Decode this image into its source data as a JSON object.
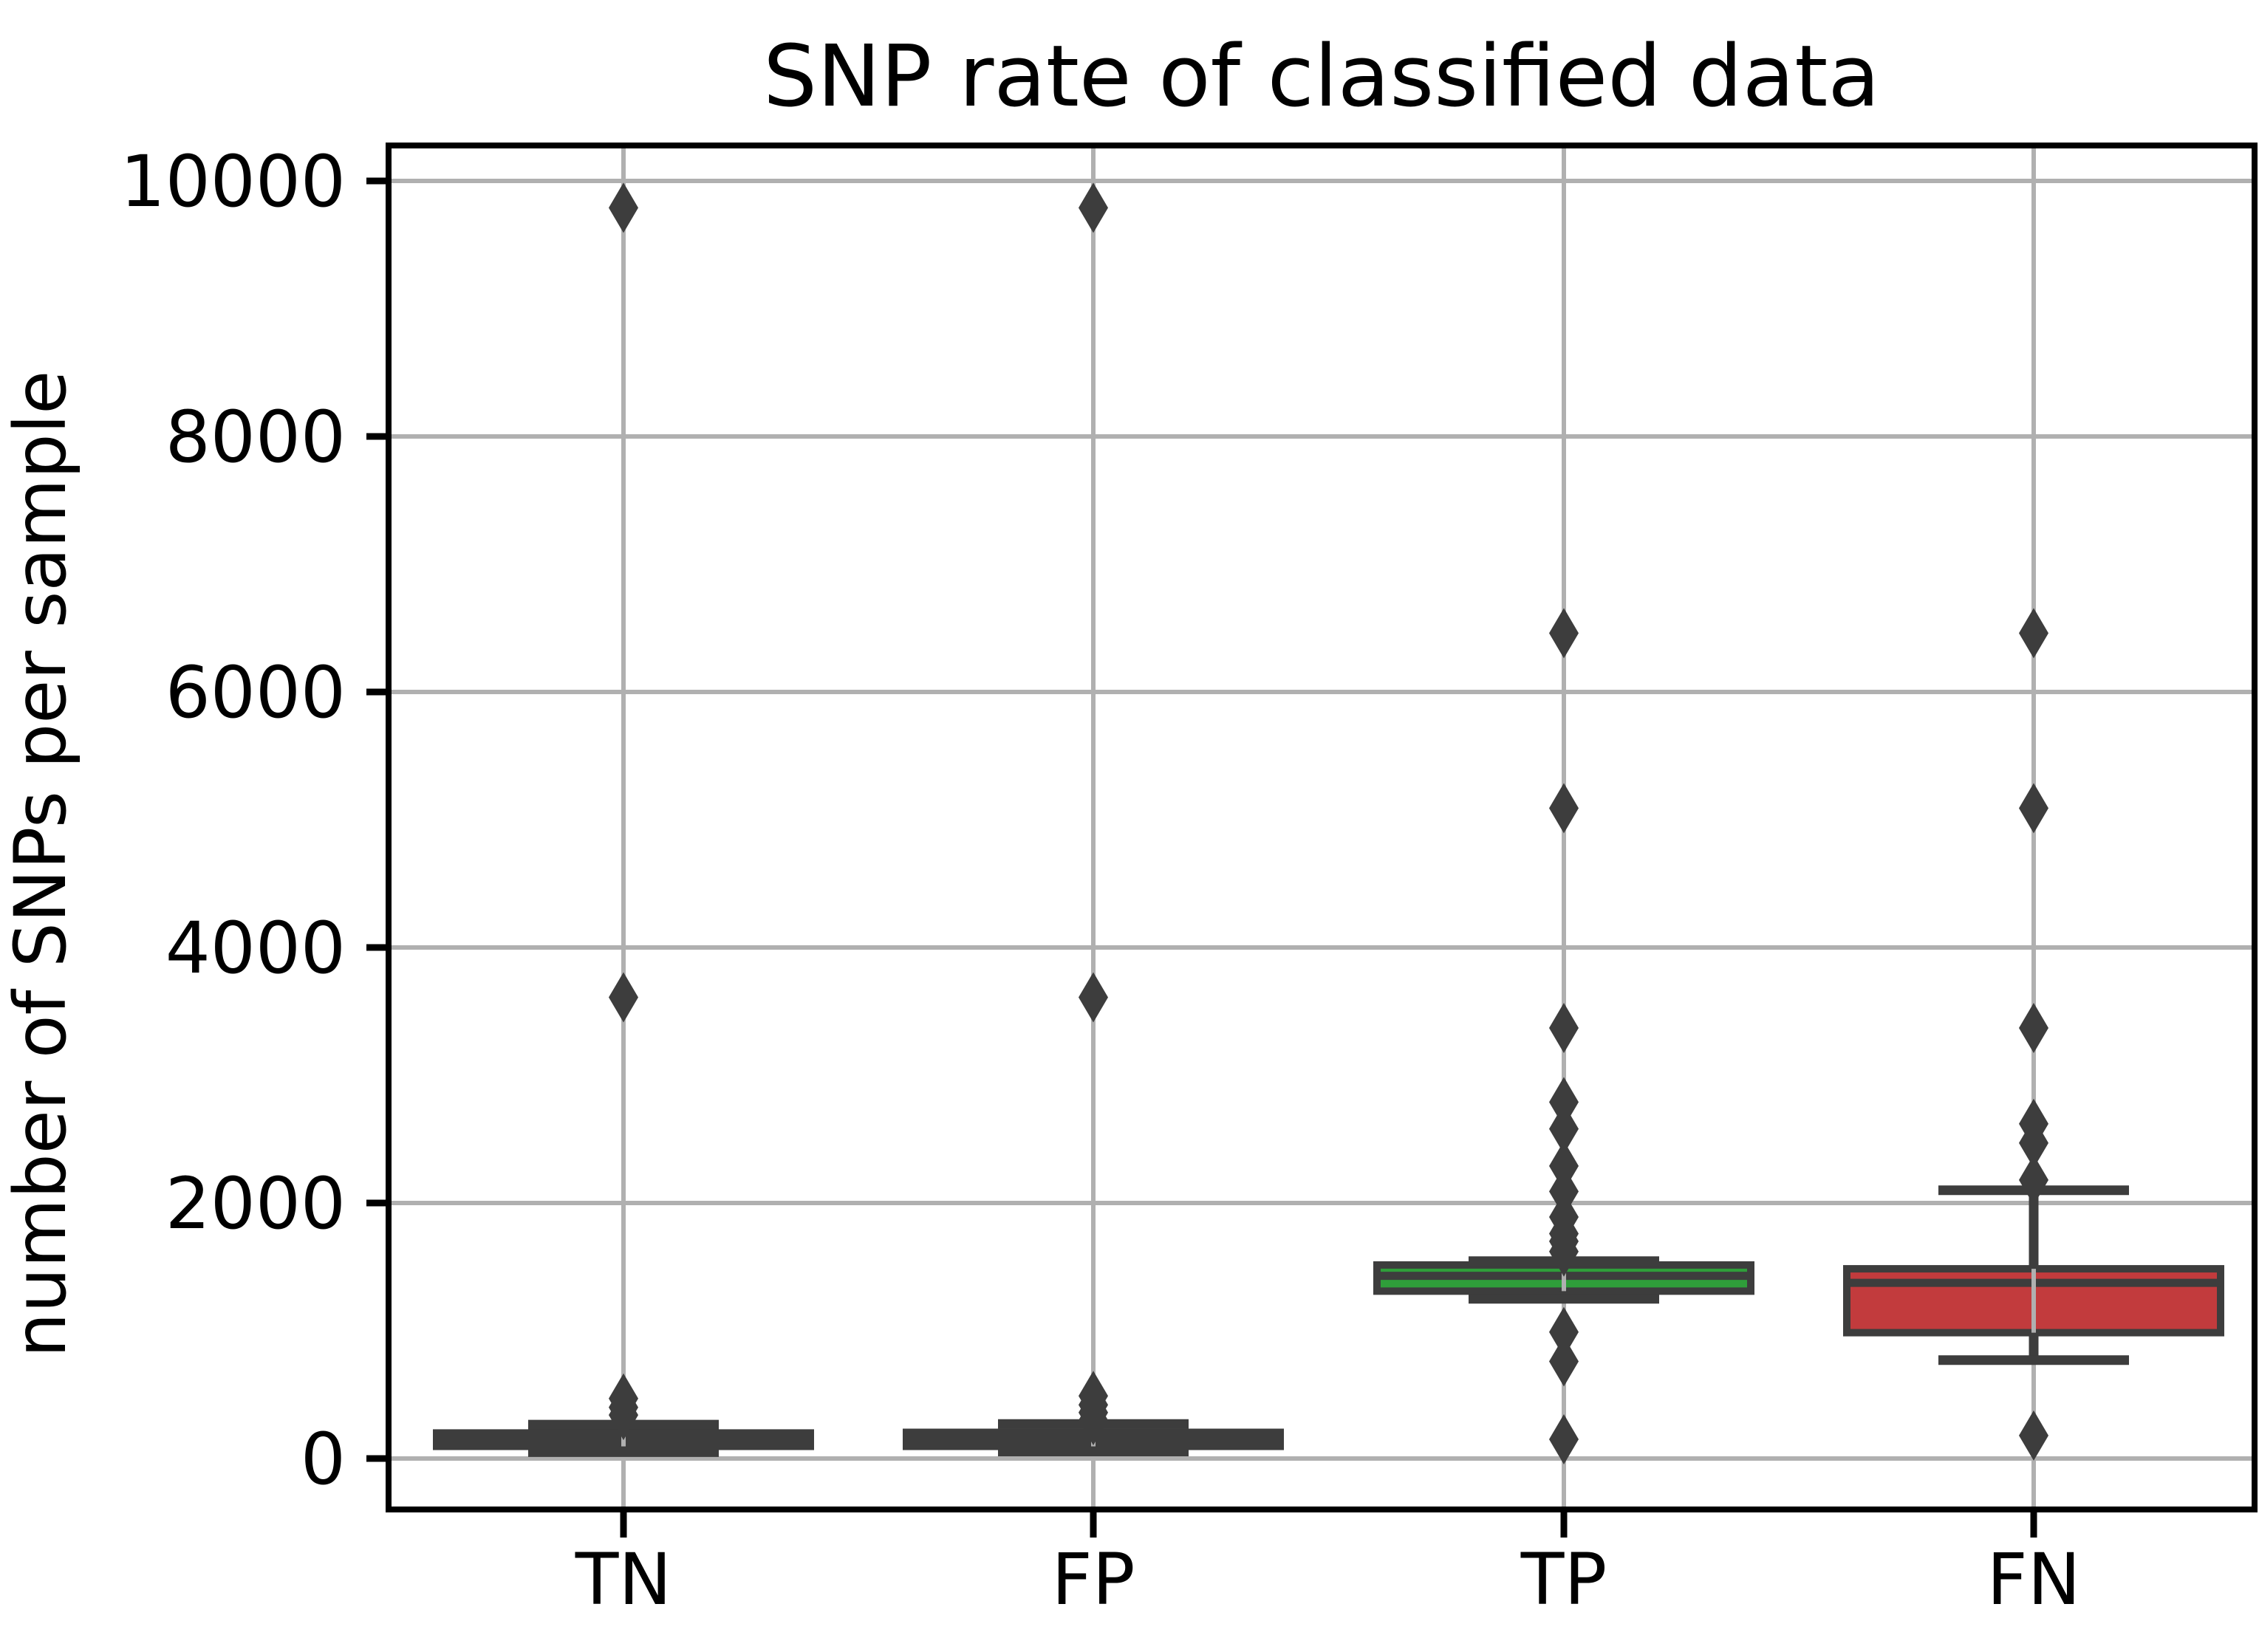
{
  "figure": {
    "background": "#ffffff"
  },
  "chart_data": {
    "type": "box",
    "title": "SNP rate of classified data",
    "ylabel": "number of SNPs per sample",
    "xlabel": "",
    "categories": [
      "TN",
      "FP",
      "TP",
      "FN"
    ],
    "ytick_labels": [
      "0",
      "2000",
      "4000",
      "6000",
      "8000",
      "10000"
    ],
    "ytick_values": [
      0,
      2000,
      4000,
      6000,
      8000,
      10000
    ],
    "ylim": [
      -400,
      10300
    ],
    "grid": true,
    "legend": "none",
    "flier_marker": "thin-diamond",
    "colors": {
      "box_edge": "#3d3d3d",
      "whisker": "#3d3d3d",
      "flier": "#3d3d3d",
      "grid": "#b0b0b0",
      "spine": "#000000",
      "tn_fill": "#3d3d3d",
      "fp_fill": "#3d3d3d",
      "tp_fill": "#2f9e3a",
      "fn_fill": "#c23b3d"
    },
    "series": [
      {
        "label": "TN",
        "fill": "#3d3d3d",
        "whisker_low": 50,
        "q1": 95,
        "median": 150,
        "q3": 200,
        "whisker_high": 265,
        "outliers": [
          340,
          400,
          470,
          3610,
          9790
        ]
      },
      {
        "label": "FP",
        "fill": "#3d3d3d",
        "whisker_low": 55,
        "q1": 95,
        "median": 150,
        "q3": 205,
        "whisker_high": 270,
        "outliers": [
          300,
          360,
          420,
          490,
          3610,
          9790
        ]
      },
      {
        "label": "TP",
        "fill": "#2f9e3a",
        "whisker_low": 1250,
        "q1": 1310,
        "median": 1430,
        "q3": 1515,
        "whisker_high": 1545,
        "outliers": [
          150,
          760,
          990,
          1620,
          1700,
          1760,
          1890,
          2090,
          2290,
          2580,
          2790,
          3370,
          5090,
          6460
        ]
      },
      {
        "label": "FN",
        "fill": "#c23b3d",
        "whisker_low": 770,
        "q1": 985,
        "median": 1375,
        "q3": 1485,
        "whisker_high": 2100,
        "outliers": [
          180,
          2180,
          2470,
          2620,
          3370,
          5090,
          6460
        ]
      }
    ]
  }
}
